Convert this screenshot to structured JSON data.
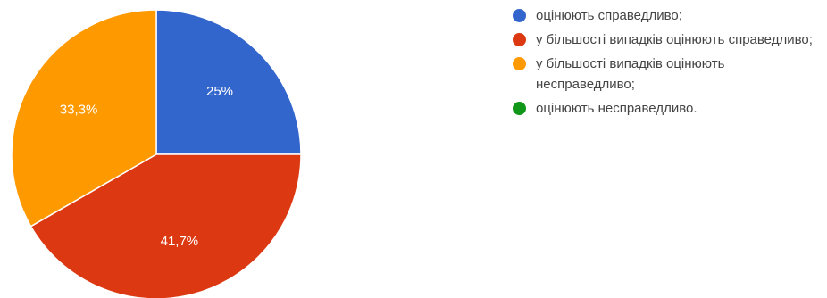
{
  "chart_data": {
    "type": "pie",
    "categories": [
      "оцінюють справедливо;",
      "у більшості випадків оцінюють справедливо;",
      "у більшості випадків оцінюють несправедливо;",
      "оцінюють несправедливо."
    ],
    "values": [
      25,
      41.7,
      33.3,
      0
    ],
    "value_labels": [
      "25%",
      "41,7%",
      "33,3%",
      ""
    ],
    "colors": [
      "#3366cc",
      "#dc3912",
      "#ff9900",
      "#109618"
    ],
    "legend_position": "right"
  }
}
